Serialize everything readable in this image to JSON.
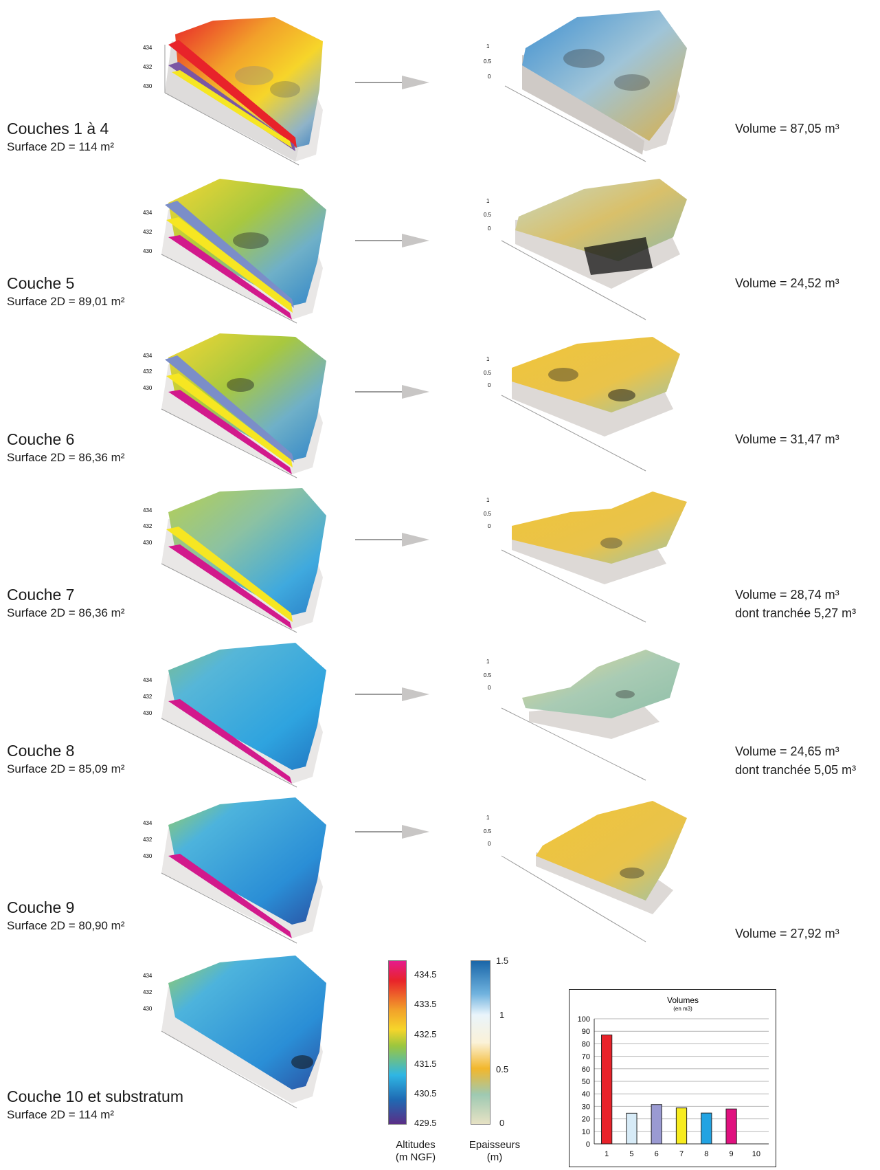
{
  "layers": [
    {
      "title": "Couches 1 à 4",
      "surface": "Surface 2D = 114 m²",
      "volume": "Volume = 87,05 m³",
      "note": ""
    },
    {
      "title": "Couche 5",
      "surface": "Surface 2D = 89,01 m²",
      "volume": "Volume = 24,52 m³",
      "note": ""
    },
    {
      "title": "Couche 6",
      "surface": "Surface 2D = 86,36 m²",
      "volume": "Volume = 31,47 m³",
      "note": ""
    },
    {
      "title": "Couche 7",
      "surface": "Surface 2D = 86,36 m²",
      "volume": "Volume = 28,74 m³",
      "note": "dont tranchée 5,27 m³"
    },
    {
      "title": "Couche 8",
      "surface": "Surface 2D = 85,09 m²",
      "volume": "Volume = 24,65 m³",
      "note": "dont tranchée 5,05 m³"
    },
    {
      "title": "Couche 9",
      "surface": "Surface 2D = 80,90 m²",
      "volume": "Volume = 27,92 m³",
      "note": ""
    },
    {
      "title": "Couche 10 et substratum",
      "surface": "Surface 2D = 114 m²",
      "volume": "",
      "note": ""
    }
  ],
  "axes": {
    "alt_ticks": [
      "434",
      "432",
      "430"
    ],
    "thick_ticks": [
      "1",
      "0.5",
      "0"
    ],
    "x_ticks": [
      "54",
      "56",
      "58",
      "60",
      "62",
      "64"
    ]
  },
  "legend_altitude": {
    "ticks": [
      "434.5",
      "433.5",
      "432.5",
      "431.5",
      "430.5",
      "429.5"
    ],
    "caption_line1": "Altitudes",
    "caption_line2": "(m NGF)",
    "colors": [
      "#e51b8c",
      "#e8232a",
      "#f2a12a",
      "#f6d52a",
      "#9cc63e",
      "#2fb6e4",
      "#1f6ab3",
      "#5a2e86"
    ]
  },
  "legend_thickness": {
    "ticks": [
      "1.5",
      "1",
      "0.5",
      "0"
    ],
    "caption_line1": "Epaisseurs",
    "caption_line2": "(m)",
    "colors": [
      "#1a66a8",
      "#6fb2de",
      "#e9f4fb",
      "#fbf2d8",
      "#f2b72c",
      "#9ec9b2",
      "#e7e2c4"
    ]
  },
  "chart_data": {
    "type": "bar",
    "title": "Volumes",
    "subtitle": "(en m3)",
    "categories": [
      "1",
      "5",
      "6",
      "7",
      "8",
      "9",
      "10"
    ],
    "values": [
      87.05,
      24.52,
      31.47,
      28.74,
      24.65,
      27.92,
      0
    ],
    "bar_colors": [
      "#e8222a",
      "#d7ebf7",
      "#9a9ad2",
      "#f7ec1f",
      "#22a3e2",
      "#e0117f",
      "#ffffff"
    ],
    "ylim": [
      0,
      100
    ],
    "yticks": [
      "100",
      "90",
      "80",
      "70",
      "60",
      "50",
      "40",
      "30",
      "20",
      "10",
      "0"
    ],
    "grid": true
  }
}
